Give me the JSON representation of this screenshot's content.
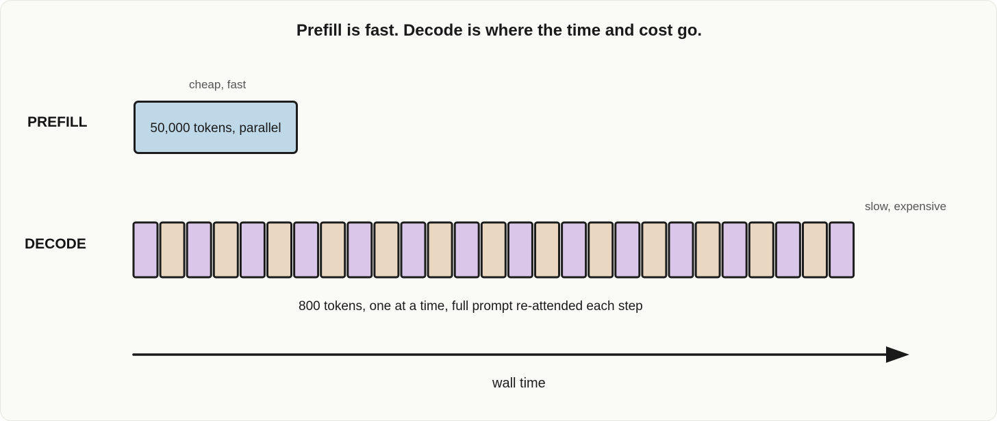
{
  "title": "Prefill is fast. Decode is where the time and cost go.",
  "prefill": {
    "label": "PREFILL",
    "note": "cheap, fast",
    "block_text": "50,000 tokens, parallel",
    "color": "#bed8e8"
  },
  "decode": {
    "label": "DECODE",
    "note": "slow, expensive",
    "caption": "800 tokens, one at a time, full prompt re-attended each step",
    "token_count": 27,
    "colors": [
      "#d9c6e9",
      "#ead7c1"
    ]
  },
  "axis": {
    "label": "wall time"
  }
}
